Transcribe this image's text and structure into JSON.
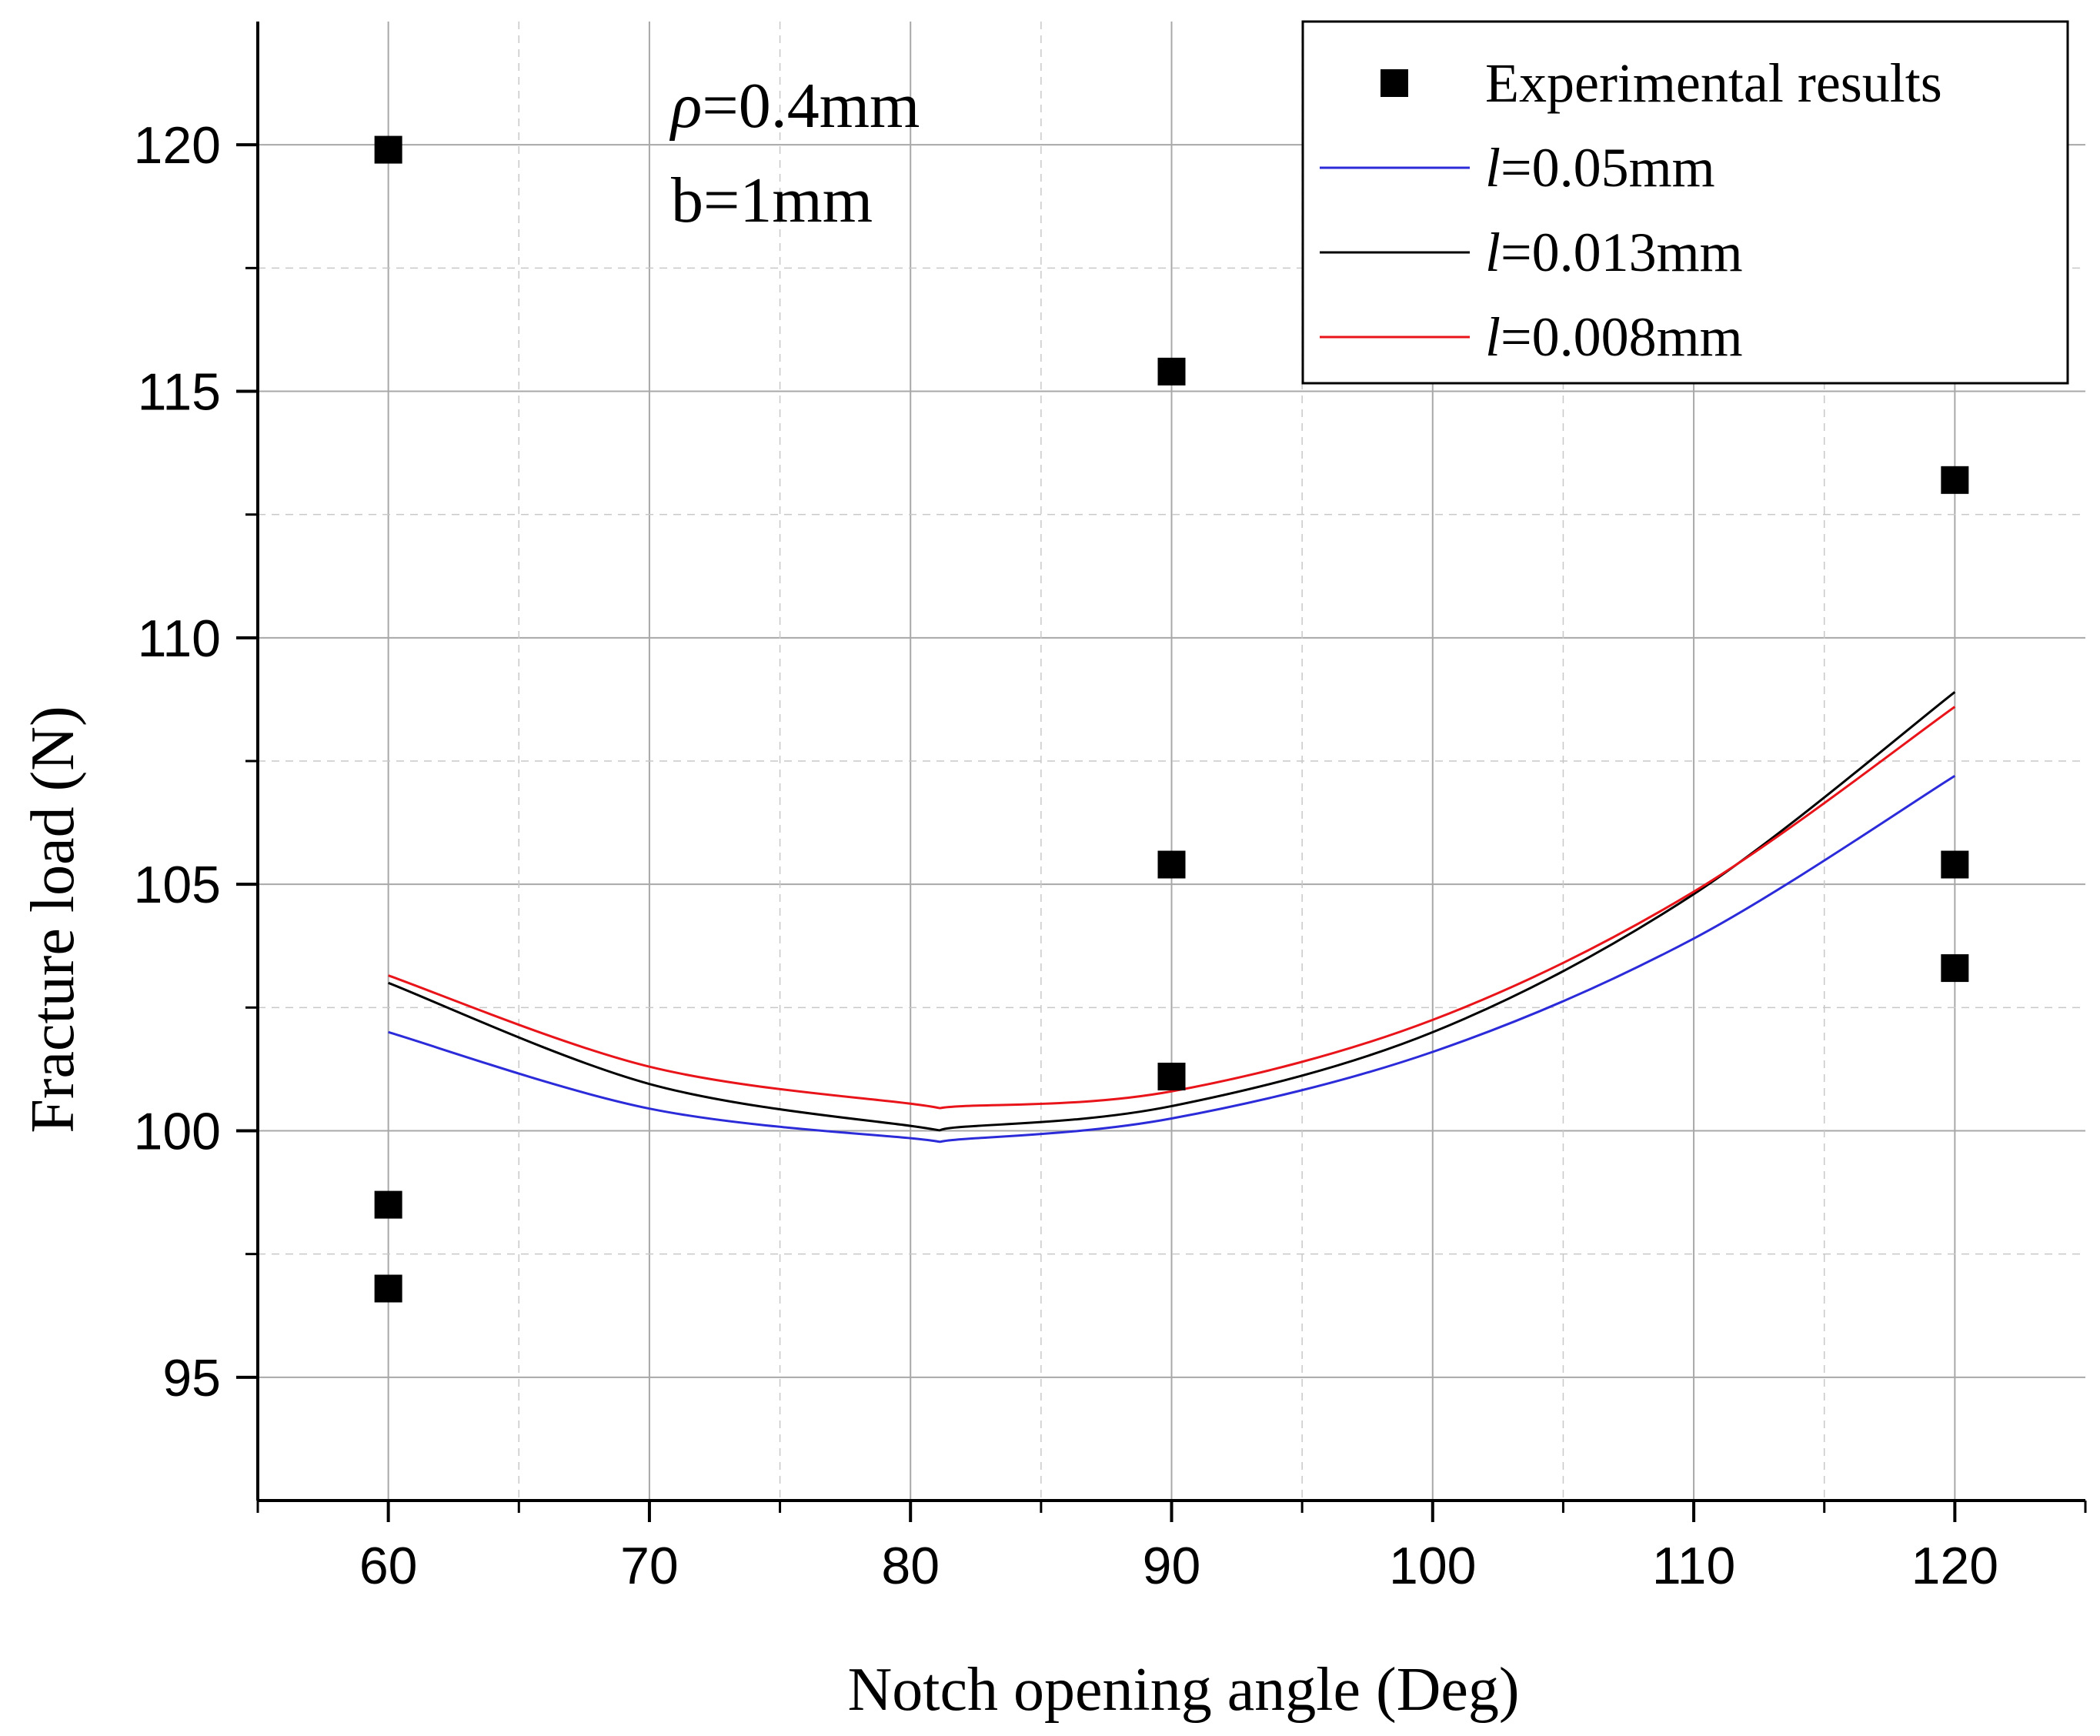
{
  "chart_data": {
    "type": "scatter",
    "title": "",
    "xlabel": "Notch opening angle (Deg)",
    "ylabel": "Fracture load (N)",
    "xlim": [
      55,
      125
    ],
    "ylim": [
      92.5,
      122.5
    ],
    "x_ticks": [
      60,
      70,
      80,
      90,
      100,
      110,
      120
    ],
    "x_tick_labels": [
      "60",
      "70",
      "80",
      "90",
      "100",
      "110",
      "120"
    ],
    "y_ticks": [
      95,
      100,
      105,
      110,
      115,
      120
    ],
    "y_tick_labels": [
      "95",
      "100",
      "105",
      "110",
      "115",
      "120"
    ],
    "grid": true,
    "annotation": {
      "rho_symbol": "ρ",
      "rho_text": "=0.4mm",
      "b_text": "b=1mm"
    },
    "legend_position": "top-right",
    "series": [
      {
        "name": "Experimental results",
        "kind": "scatter",
        "marker": "square",
        "color": "#000000",
        "points": [
          [
            60,
            119.9
          ],
          [
            60,
            98.5
          ],
          [
            60,
            96.8
          ],
          [
            90,
            115.4
          ],
          [
            90,
            105.4
          ],
          [
            90,
            101.1
          ],
          [
            120,
            113.2
          ],
          [
            120,
            105.4
          ],
          [
            120,
            103.3
          ]
        ]
      },
      {
        "name": "l=0.05mm",
        "label_italic": "l",
        "label_rest": "=0.05mm",
        "kind": "line",
        "color": "#2b2bd9",
        "x": [
          60,
          70,
          80,
          82,
          90,
          100,
          110,
          120
        ],
        "y": [
          102.0,
          100.45,
          99.85,
          99.83,
          100.25,
          101.6,
          103.9,
          107.2
        ]
      },
      {
        "name": "l=0.013mm",
        "label_italic": "l",
        "label_rest": "=0.013mm",
        "kind": "line",
        "color": "#000000",
        "x": [
          60,
          70,
          80,
          82,
          90,
          100,
          110,
          120
        ],
        "y": [
          103.0,
          100.95,
          100.1,
          100.08,
          100.5,
          102.0,
          104.8,
          108.9
        ]
      },
      {
        "name": "l=0.008mm",
        "label_italic": "l",
        "label_rest": "=0.008mm",
        "kind": "line",
        "color": "#e8141a",
        "x": [
          60,
          70,
          80,
          82,
          90,
          100,
          110,
          120
        ],
        "y": [
          103.15,
          101.3,
          100.55,
          100.5,
          100.8,
          102.25,
          104.85,
          108.6
        ]
      }
    ]
  }
}
